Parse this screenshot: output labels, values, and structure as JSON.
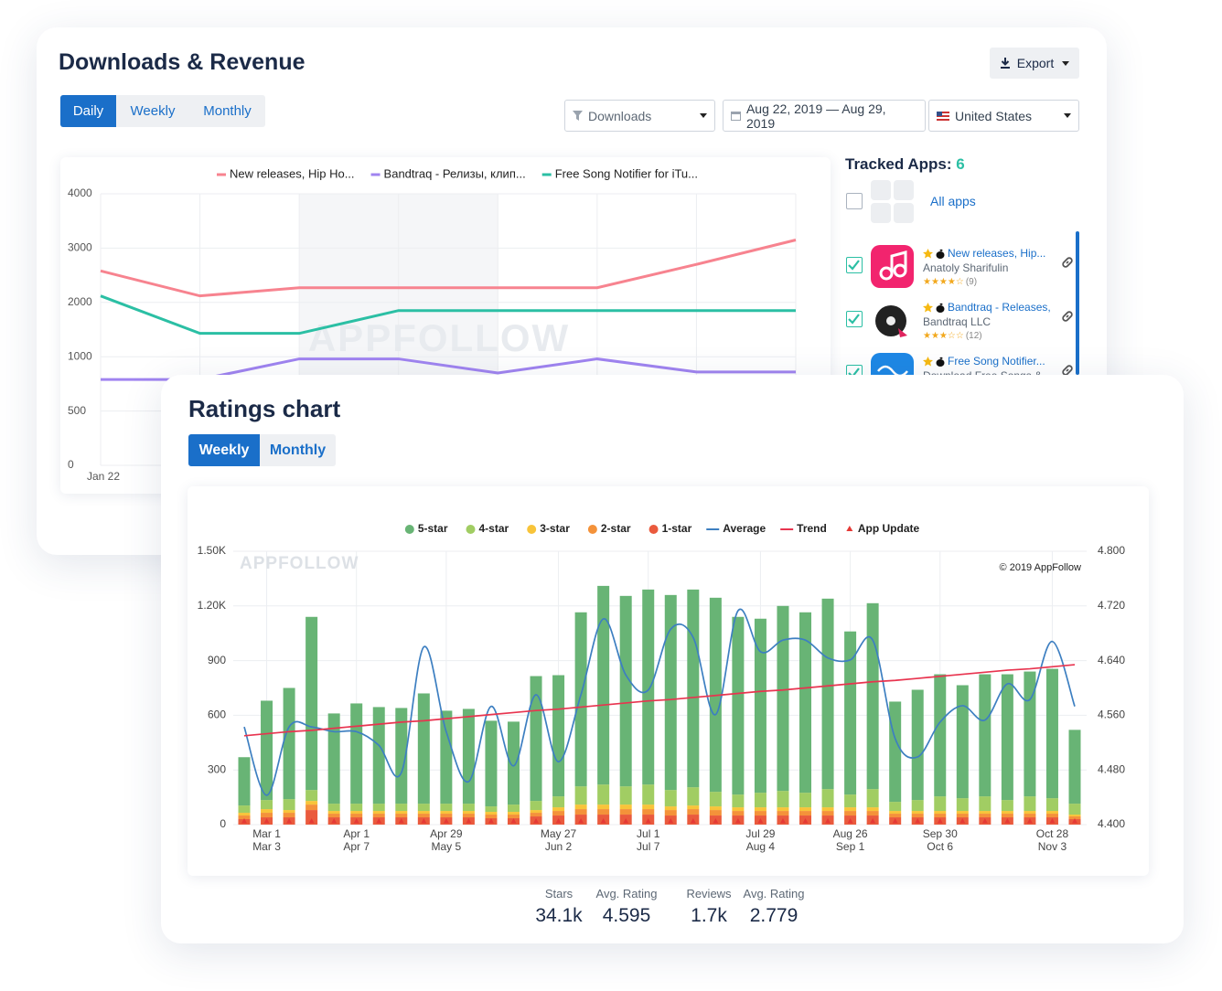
{
  "header": {
    "title": "Downloads & Revenue",
    "export": "Export"
  },
  "tabs": {
    "items": [
      "Daily",
      "Weekly",
      "Monthly"
    ],
    "active": 0
  },
  "filters": {
    "metric": "Downloads",
    "date_range": "Aug 22, 2019 — Aug 29, 2019",
    "country": "United States"
  },
  "tracked_apps": {
    "title": "Tracked Apps:",
    "count": 6,
    "all_apps": "All apps",
    "apps": [
      {
        "name": "New releases, Hip...",
        "developer": "Anatoly Sharifulin",
        "stars": "★★★★☆",
        "reviews": "(9)",
        "icon_color": "#f2246e",
        "checked": true
      },
      {
        "name": "Bandtraq - Releases,",
        "developer": "Bandtraq LLC",
        "stars": "★★★☆☆",
        "reviews": "(12)",
        "icon_color": "#ffffff",
        "checked": true
      },
      {
        "name": "Free Song Notifier...",
        "developer": "Download Free Songs & ...",
        "icon_color": "#1e88e5",
        "checked": true
      }
    ]
  },
  "ratings": {
    "title": "Ratings chart",
    "tabs": {
      "items": [
        "Weekly",
        "Monthly"
      ],
      "active": 0
    },
    "stats": [
      {
        "label": "Stars",
        "value": "34.1k"
      },
      {
        "label": "Avg. Rating",
        "value": "4.595"
      },
      {
        "label": "Reviews",
        "value": "1.7k"
      },
      {
        "label": "Avg. Rating",
        "value": "2.779"
      }
    ]
  },
  "chart_data": [
    {
      "type": "line",
      "watermark": "APPFOLLOW",
      "categories": [
        "Jan 22",
        null,
        null,
        null,
        null,
        null,
        null,
        null
      ],
      "series": [
        {
          "name": "New releases, Hip Ho...",
          "color": "#f7838f",
          "values": [
            2580,
            2120,
            2270,
            2270,
            2270,
            2270,
            2700,
            3150
          ]
        },
        {
          "name": "Bandtraq - Релизы, клип...",
          "color": "#a084f0",
          "values": [
            790,
            790,
            980,
            980,
            850,
            980,
            860,
            860
          ]
        },
        {
          "name": "Free Song Notifier for iTu...",
          "color": "#2bbfa4",
          "values": [
            2120,
            1430,
            1430,
            1850,
            1850,
            1850,
            1850,
            1850
          ]
        }
      ],
      "ylim": [
        0,
        4000
      ],
      "yticks": [
        0,
        500,
        1000,
        2000,
        3000,
        4000
      ],
      "grid": true
    },
    {
      "type": "bar",
      "stacked": true,
      "watermark": "APPFOLLOW",
      "credit": "© 2019 AppFollow",
      "legend": "top",
      "categories": [
        null,
        [
          "Mar 1",
          "Mar 3"
        ],
        null,
        null,
        null,
        [
          "Apr 1",
          "Apr 7"
        ],
        null,
        null,
        null,
        [
          "Apr 29",
          "May 5"
        ],
        null,
        null,
        null,
        null,
        [
          "May 27",
          "Jun 2"
        ],
        null,
        null,
        null,
        [
          "Jul 1",
          "Jul 7"
        ],
        null,
        null,
        null,
        null,
        [
          "Jul 29",
          "Aug 4"
        ],
        null,
        null,
        null,
        [
          "Aug 26",
          "Sep 1"
        ],
        null,
        null,
        null,
        [
          "Sep 30",
          "Oct 6"
        ],
        null,
        null,
        null,
        null,
        [
          "Oct 28",
          "Nov 3"
        ],
        null
      ],
      "series": [
        {
          "name": "1-star",
          "type": "bar",
          "color": "#ea5a3d",
          "values": [
            30,
            40,
            40,
            80,
            40,
            40,
            40,
            40,
            40,
            40,
            40,
            35,
            35,
            45,
            50,
            55,
            55,
            55,
            55,
            50,
            55,
            50,
            50,
            50,
            50,
            50,
            50,
            50,
            50,
            40,
            40,
            40,
            40,
            40,
            40,
            40,
            40,
            30
          ]
        },
        {
          "name": "2-star",
          "type": "bar",
          "color": "#f4923a",
          "values": [
            20,
            25,
            25,
            30,
            20,
            20,
            20,
            20,
            20,
            20,
            20,
            20,
            20,
            20,
            25,
            30,
            30,
            30,
            30,
            30,
            30,
            30,
            25,
            25,
            25,
            25,
            25,
            25,
            25,
            20,
            20,
            20,
            20,
            20,
            20,
            20,
            20,
            15
          ]
        },
        {
          "name": "3-star",
          "type": "bar",
          "color": "#f8c43a",
          "values": [
            15,
            20,
            15,
            20,
            15,
            15,
            15,
            15,
            15,
            15,
            15,
            15,
            15,
            15,
            20,
            25,
            25,
            25,
            25,
            20,
            20,
            20,
            20,
            20,
            20,
            20,
            20,
            20,
            20,
            15,
            15,
            15,
            15,
            15,
            15,
            15,
            15,
            10
          ]
        },
        {
          "name": "4-star",
          "type": "bar",
          "color": "#a1cd63",
          "values": [
            40,
            50,
            60,
            60,
            40,
            40,
            40,
            40,
            40,
            40,
            40,
            30,
            40,
            50,
            60,
            100,
            110,
            100,
            110,
            90,
            100,
            80,
            70,
            80,
            90,
            80,
            100,
            70,
            100,
            50,
            60,
            80,
            70,
            80,
            60,
            80,
            70,
            60
          ]
        },
        {
          "name": "5-star",
          "type": "bar",
          "color": "#68b475",
          "values": [
            265,
            545,
            610,
            950,
            495,
            550,
            530,
            525,
            605,
            510,
            520,
            470,
            455,
            685,
            665,
            955,
            1090,
            1045,
            1070,
            1070,
            1085,
            1065,
            975,
            955,
            1015,
            990,
            1045,
            895,
            1020,
            550,
            605,
            670,
            620,
            670,
            690,
            685,
            710,
            405
          ]
        },
        {
          "name": "Average",
          "type": "line",
          "axis": "y2",
          "smooth": true,
          "color": "#3d7fc1",
          "values": [
            4.543,
            4.443,
            4.543,
            4.543,
            4.536,
            4.536,
            4.516,
            4.476,
            4.66,
            4.536,
            4.463,
            4.573,
            4.486,
            4.59,
            4.492,
            4.59,
            4.701,
            4.619,
            4.597,
            4.686,
            4.674,
            4.561,
            4.713,
            4.653,
            4.67,
            4.67,
            4.644,
            4.641,
            4.67,
            4.526,
            4.499,
            4.55,
            4.574,
            4.553,
            4.606,
            4.583,
            4.668,
            4.573
          ]
        },
        {
          "name": "Trend",
          "type": "line",
          "axis": "y2",
          "smooth": false,
          "color": "#e8344f",
          "values": [
            4.53,
            4.533,
            4.536,
            4.538,
            4.541,
            4.544,
            4.547,
            4.55,
            4.552,
            4.555,
            4.558,
            4.561,
            4.564,
            4.567,
            4.569,
            4.572,
            4.575,
            4.578,
            4.581,
            4.583,
            4.586,
            4.589,
            4.592,
            4.595,
            4.597,
            4.6,
            4.603,
            4.606,
            4.609,
            4.611,
            4.614,
            4.617,
            4.62,
            4.623,
            4.626,
            4.628,
            4.631,
            4.634
          ]
        },
        {
          "name": "App Update",
          "type": "marker",
          "color": "#e53935",
          "values": [
            0,
            0,
            0,
            0,
            0,
            0,
            0,
            0,
            0,
            0,
            0,
            0,
            0,
            0,
            0,
            0,
            0,
            0,
            0,
            0,
            0,
            0,
            0,
            0,
            0,
            0,
            0,
            0,
            0,
            0,
            0,
            0,
            0,
            0,
            0,
            0,
            0,
            0
          ]
        }
      ],
      "legend_order": [
        4,
        3,
        2,
        1,
        0,
        5,
        6,
        7
      ],
      "ylim": [
        0,
        1500
      ],
      "yticks": [
        0,
        300,
        600,
        900,
        {
          "value": 1200,
          "label": "1.20K"
        },
        {
          "value": 1500,
          "label": "1.50K"
        }
      ],
      "y2lim": [
        4.4,
        4.8
      ],
      "y2ticks": [
        {
          "value": 4.4,
          "label": "4.400"
        },
        {
          "value": 4.48,
          "label": "4.480"
        },
        {
          "value": 4.56,
          "label": "4.560"
        },
        {
          "value": 4.64,
          "label": "4.640"
        },
        {
          "value": 4.72,
          "label": "4.720"
        },
        {
          "value": 4.8,
          "label": "4.800"
        }
      ],
      "grid": true
    }
  ]
}
